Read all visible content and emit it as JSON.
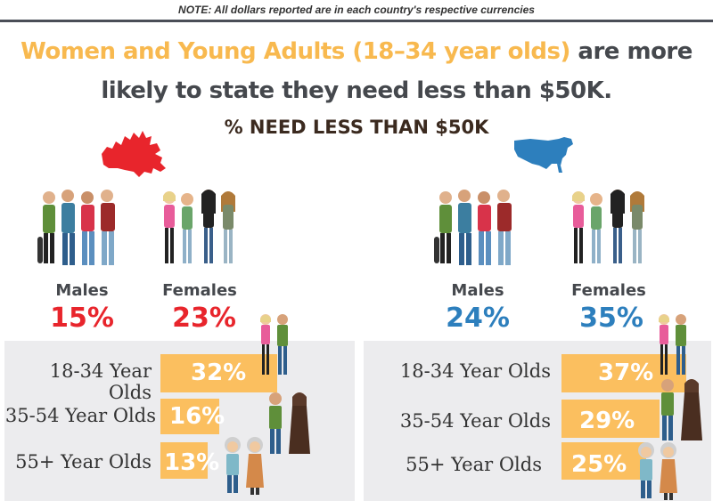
{
  "note": "NOTE: All dollars reported are in each country's respective currencies",
  "headline": {
    "highlight": "Women and Young Adults (18–34 year olds)",
    "rest1": " are more",
    "line2": "likely to state they need less than $50K."
  },
  "subtitle": "% NEED LESS THAN $50K",
  "colors": {
    "accent": "#f8b94f",
    "canada": "#e8252c",
    "usa": "#2d7fbd",
    "bar": "#fbbf5f",
    "panel": "#ececee"
  },
  "chart_data": [
    {
      "type": "bar",
      "country": "Canada",
      "map_icon": "canada-map-icon",
      "gender": {
        "categories": [
          "Males",
          "Females"
        ],
        "values": [
          "15%",
          "23%"
        ]
      },
      "age": {
        "categories": [
          "18-34 Year Olds",
          "35-54 Year Olds",
          "55+ Year Olds"
        ],
        "values": [
          32,
          16,
          13
        ],
        "labels": [
          "32%",
          "16%",
          "13%"
        ]
      },
      "ylim": [
        0,
        40
      ]
    },
    {
      "type": "bar",
      "country": "USA",
      "map_icon": "usa-map-icon",
      "gender": {
        "categories": [
          "Males",
          "Females"
        ],
        "values": [
          "24%",
          "35%"
        ]
      },
      "age": {
        "categories": [
          "18-34 Year Olds",
          "35-54 Year Olds",
          "55+ Year Olds"
        ],
        "values": [
          37,
          29,
          25
        ],
        "labels": [
          "37%",
          "29%",
          "25%"
        ]
      },
      "ylim": [
        0,
        40
      ]
    }
  ]
}
